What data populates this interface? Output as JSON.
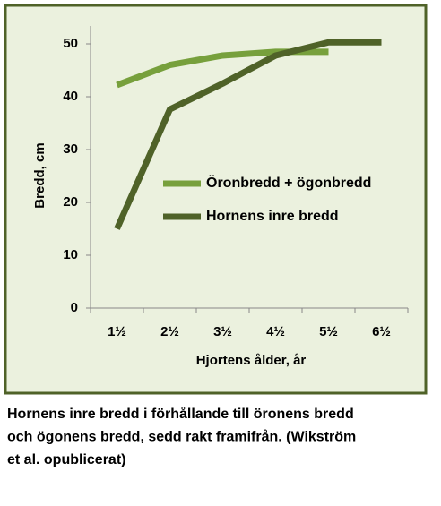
{
  "chart_data": {
    "type": "line",
    "categories": [
      "1½",
      "2½",
      "3½",
      "4½",
      "5½",
      "6½"
    ],
    "series": [
      {
        "name": "Öronbredd + ögonbredd",
        "color": "#77a03c",
        "values": [
          42.2,
          46,
          47.8,
          48.5,
          48.5,
          null
        ]
      },
      {
        "name": "Hornens inre bredd",
        "color": "#4f6228",
        "values": [
          15,
          37.6,
          42.5,
          47.8,
          50.3,
          50.3
        ]
      }
    ],
    "ylim": [
      0,
      50
    ],
    "yticks": [
      0,
      10,
      20,
      30,
      40,
      50
    ],
    "ylabel": "Bredd, cm",
    "xlabel": "Hjortens ålder, år",
    "caption": [
      "Hornens inre bredd i förhållande till öronens bredd",
      "och ögonens bredd, sedd rakt framifrån. (Wikström",
      "et al. opublicerat)"
    ]
  }
}
